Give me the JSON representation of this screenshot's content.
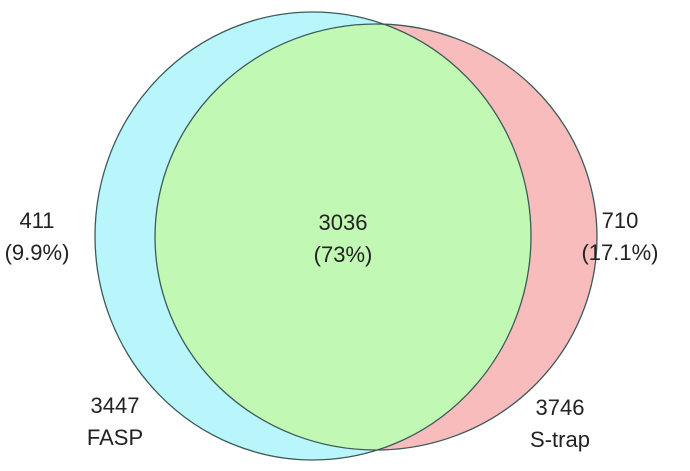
{
  "sets": [
    {
      "name": "FASP",
      "total": "3447",
      "unique_count": "411",
      "unique_pct": "(9.9%)",
      "color": "#b8f6fb"
    },
    {
      "name": "S-trap",
      "total": "3746",
      "unique_count": "710",
      "unique_pct": "(17.1%)",
      "color": "#f9bcbc"
    }
  ],
  "overlap": {
    "count": "3036",
    "pct": "(73%)",
    "color": "#c0f8b4"
  },
  "stroke_color": "#3c5a5a"
}
